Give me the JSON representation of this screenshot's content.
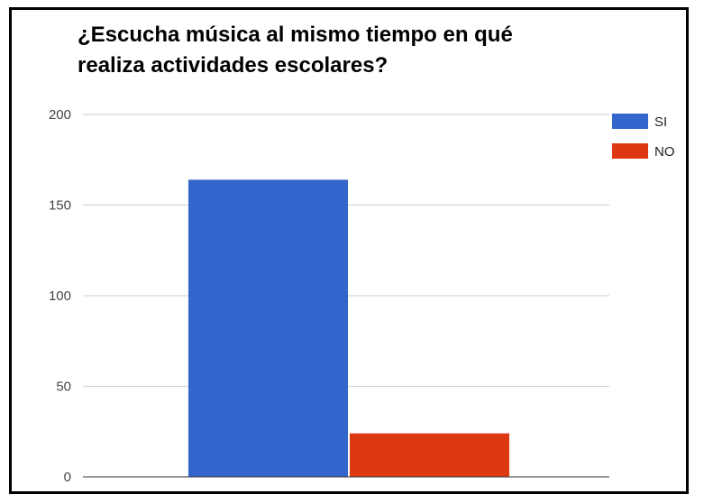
{
  "chart_data": {
    "type": "bar",
    "title": "¿Escucha música al mismo tiempo en qué realiza actividades escolares?",
    "categories": [
      ""
    ],
    "series": [
      {
        "name": "SI",
        "values": [
          164
        ],
        "color": "#3366CC"
      },
      {
        "name": "NO",
        "values": [
          24
        ],
        "color": "#DC3912"
      }
    ],
    "ylim": [
      0,
      200
    ],
    "yticks": [
      0,
      50,
      100,
      150,
      200
    ],
    "grid": true,
    "legend_position": "right"
  }
}
